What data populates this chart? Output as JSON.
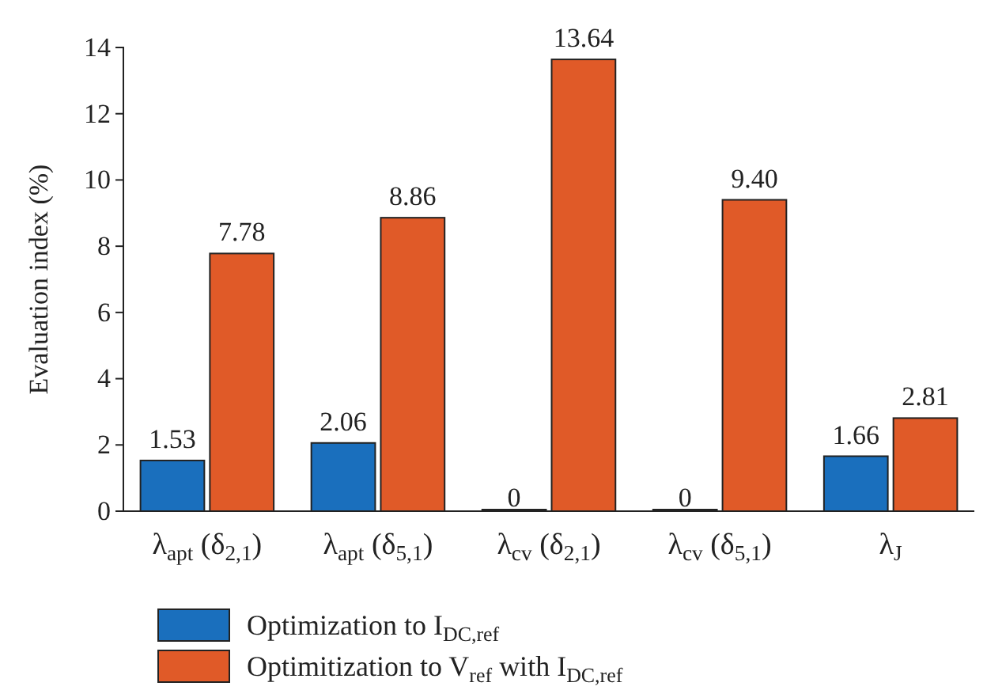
{
  "chart_data": {
    "type": "bar",
    "ylabel": "Evaluation index (%)",
    "categories": [
      "λ$_{apt}$ (δ$_{2,1}$)",
      "λ$_{apt}$ (δ$_{5,1}$)",
      "λ$_{cv}$ (δ$_{2,1}$)",
      "λ$_{cv}$ (δ$_{5,1}$)",
      "λ$_{J}$"
    ],
    "series": [
      {
        "name": "Optimization to I$_{DC,ref}$",
        "color": "#1a6fbd",
        "values": [
          1.53,
          2.06,
          0,
          0,
          1.66
        ],
        "value_labels": [
          "1.53",
          "2.06",
          "0",
          "0",
          "1.66"
        ]
      },
      {
        "name": "Optimitization to V$_{ref}$ with I$_{DC,ref}$",
        "color": "#e05a28",
        "values": [
          7.78,
          8.86,
          13.64,
          9.4,
          2.81
        ],
        "value_labels": [
          "7.78",
          "8.86",
          "13.64",
          "9.40",
          "2.81"
        ]
      }
    ],
    "ylim": [
      0,
      14
    ],
    "yticks": [
      0,
      2,
      4,
      6,
      8,
      10,
      12,
      14
    ],
    "grid": false,
    "legend": "bottom"
  }
}
